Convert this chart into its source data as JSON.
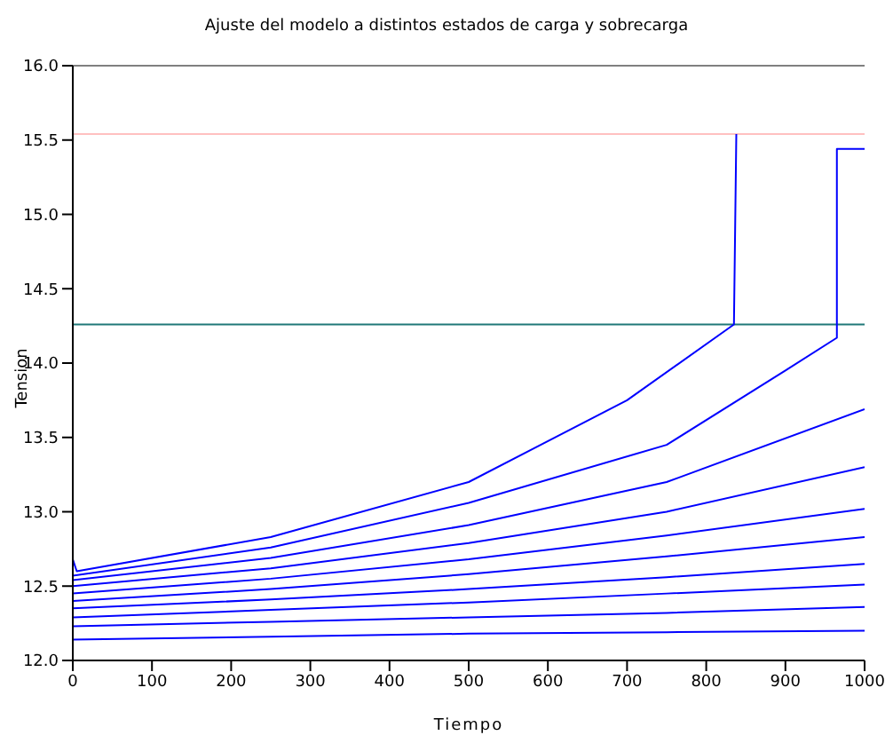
{
  "chart_data": {
    "type": "line",
    "title": "Ajuste del modelo a distintos estados de carga y sobrecarga",
    "xlabel": "Tiempo",
    "ylabel": "Tension",
    "xlim": [
      0,
      1000
    ],
    "xticks": [
      0,
      100,
      200,
      300,
      400,
      500,
      600,
      700,
      800,
      900,
      1000
    ],
    "ylim": [
      12,
      16
    ],
    "yticks": [
      {
        "value": 12,
        "label": "12.0"
      },
      {
        "value": 12.5,
        "label": "12.5"
      },
      {
        "value": 13,
        "label": "13.0"
      },
      {
        "value": 13.5,
        "label": "13.5"
      },
      {
        "value": 14,
        "label": "14.0"
      },
      {
        "value": 14.5,
        "label": "14.5"
      },
      {
        "value": 15,
        "label": "15.0"
      },
      {
        "value": 15.5,
        "label": "15.5"
      },
      {
        "value": 16,
        "label": "16.0"
      }
    ],
    "grid": false,
    "legend": false,
    "marker": "none",
    "line_style": "solid",
    "ref_lines": [
      {
        "axis": "y",
        "value": 15.54,
        "color": "#ffc0c0"
      },
      {
        "axis": "y",
        "value": 14.26,
        "color": "#207878"
      }
    ],
    "series": [
      {
        "color": "#0000ff",
        "x": [
          0,
          250,
          500,
          750,
          1000
        ],
        "values": [
          12.14,
          12.16,
          12.18,
          12.19,
          12.2
        ]
      },
      {
        "color": "#0000ff",
        "x": [
          0,
          250,
          500,
          750,
          1000
        ],
        "values": [
          12.23,
          12.26,
          12.29,
          12.32,
          12.36
        ]
      },
      {
        "color": "#0000ff",
        "x": [
          0,
          250,
          500,
          750,
          1000
        ],
        "values": [
          12.29,
          12.34,
          12.39,
          12.45,
          12.51
        ]
      },
      {
        "color": "#0000ff",
        "x": [
          0,
          250,
          500,
          750,
          1000
        ],
        "values": [
          12.35,
          12.41,
          12.48,
          12.56,
          12.65
        ]
      },
      {
        "color": "#0000ff",
        "x": [
          0,
          250,
          500,
          750,
          1000
        ],
        "values": [
          12.4,
          12.48,
          12.58,
          12.7,
          12.83
        ]
      },
      {
        "color": "#0000ff",
        "x": [
          0,
          250,
          500,
          750,
          1000
        ],
        "values": [
          12.45,
          12.55,
          12.68,
          12.84,
          13.02
        ]
      },
      {
        "color": "#0000ff",
        "x": [
          0,
          250,
          500,
          750,
          1000
        ],
        "values": [
          12.5,
          12.62,
          12.79,
          13.0,
          13.3
        ]
      },
      {
        "color": "#0000ff",
        "x": [
          0,
          250,
          500,
          750,
          1000
        ],
        "values": [
          12.54,
          12.69,
          12.91,
          13.2,
          13.69
        ]
      },
      {
        "color": "#0000ff",
        "x": [
          0,
          250,
          500,
          750,
          900,
          965,
          965,
          1000
        ],
        "values": [
          12.57,
          12.76,
          13.06,
          13.45,
          13.95,
          14.17,
          15.44,
          15.44
        ]
      },
      {
        "color": "#0000ff",
        "x": [
          0,
          5,
          250,
          500,
          700,
          835,
          838
        ],
        "values": [
          12.68,
          12.6,
          12.83,
          13.2,
          13.75,
          14.26,
          15.54
        ]
      }
    ]
  }
}
